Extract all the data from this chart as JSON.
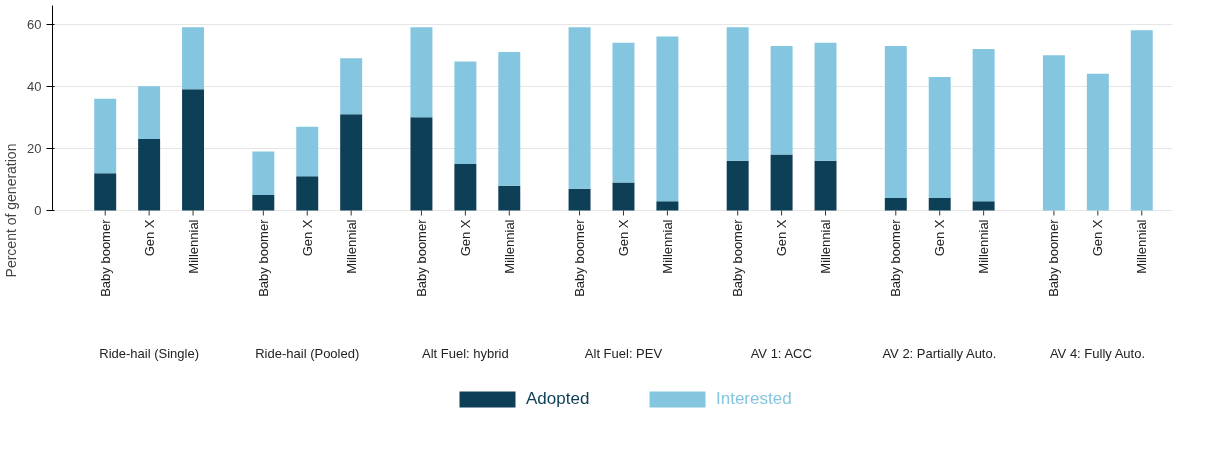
{
  "chart_data": {
    "type": "bar",
    "stacked": true,
    "ylabel": "Percent of generation",
    "categories": [
      "Baby boomer",
      "Gen X",
      "Millennial",
      "Baby boomer",
      "Gen X",
      "Millennial",
      "Baby boomer",
      "Gen X",
      "Millennial",
      "Baby boomer",
      "Gen X",
      "Millennial",
      "Baby boomer",
      "Gen X",
      "Millennial",
      "Baby boomer",
      "Gen X",
      "Millennial",
      "Baby boomer",
      "Gen X",
      "Millennial"
    ],
    "series": [
      {
        "name": "Adopted",
        "color": "#0d3f57",
        "values": [
          12,
          23,
          39,
          5,
          11,
          31,
          30,
          15,
          8,
          7,
          9,
          3,
          16,
          18,
          16,
          4,
          4,
          3,
          0,
          0,
          0
        ]
      },
      {
        "name": "Interested",
        "color": "#84c5df",
        "values": [
          24,
          17,
          20,
          14,
          16,
          18,
          29,
          33,
          43,
          52,
          45,
          53,
          43,
          35,
          38,
          49,
          39,
          49,
          50,
          44,
          58
        ]
      }
    ],
    "annotations": [
      "Ride-hail (Single)",
      "Ride-hail (Pooled)",
      "Alt Fuel: hybrid",
      "Alt Fuel: PEV",
      "AV 1: ACC",
      "AV 2: Partially Auto.",
      "AV 4: Fully Auto."
    ],
    "ylim": [
      0,
      66
    ],
    "yticks": [
      0,
      20,
      40,
      60
    ],
    "grid": "y",
    "legend": "bottom"
  }
}
